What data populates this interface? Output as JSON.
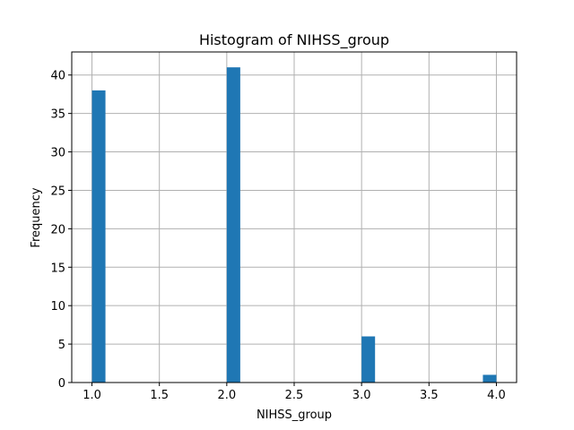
{
  "chart_data": {
    "type": "bar",
    "title": "Histogram of NIHSS_group",
    "xlabel": "NIHSS_group",
    "ylabel": "Frequency",
    "bins": [
      {
        "x0": 1.0,
        "x1": 1.1,
        "count": 38
      },
      {
        "x0": 2.0,
        "x1": 2.1,
        "count": 41
      },
      {
        "x0": 3.0,
        "x1": 3.1,
        "count": 6
      },
      {
        "x0": 3.9,
        "x1": 4.0,
        "count": 1
      }
    ],
    "xlim": [
      0.85,
      4.15
    ],
    "ylim": [
      0,
      43
    ],
    "xticks": [
      1.0,
      1.5,
      2.0,
      2.5,
      3.0,
      3.5,
      4.0
    ],
    "xtick_labels": [
      "1.0",
      "1.5",
      "2.0",
      "2.5",
      "3.0",
      "3.5",
      "4.0"
    ],
    "yticks": [
      0,
      5,
      10,
      15,
      20,
      25,
      30,
      35,
      40
    ],
    "ytick_labels": [
      "0",
      "5",
      "10",
      "15",
      "20",
      "25",
      "30",
      "35",
      "40"
    ],
    "grid": true,
    "bar_color": "#1f77b4",
    "grid_color": "#b0b0b0"
  }
}
